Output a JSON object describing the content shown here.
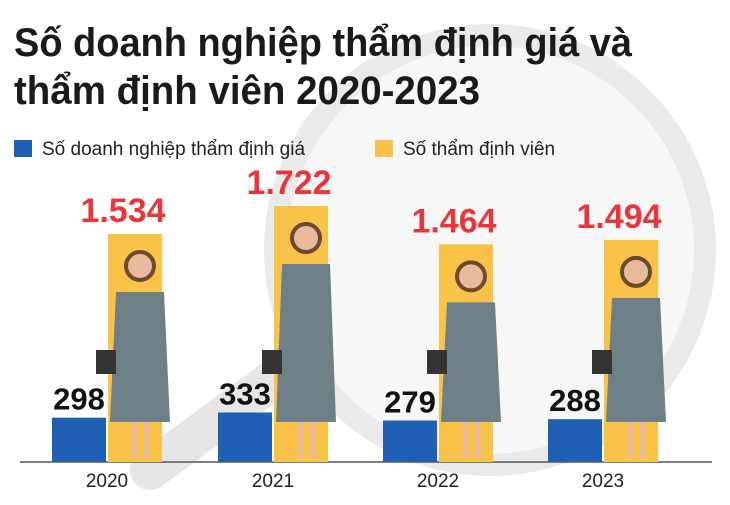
{
  "chart_data": {
    "type": "bar",
    "title": [
      "Số doanh nghiệp thẩm định giá và",
      "thẩm định viên 2020-2023"
    ],
    "categories": [
      "2020",
      "2021",
      "2022",
      "2023"
    ],
    "series": [
      {
        "name": "Số doanh nghiệp thẩm định giá",
        "color": "#1f5fb4",
        "label_color": "#111111",
        "values": [
          298,
          333,
          279,
          288
        ],
        "value_labels": [
          "298",
          "333",
          "279",
          "288"
        ]
      },
      {
        "name": "Số thẩm định viên",
        "color": "#f9c34a",
        "label_color": "#e8373c",
        "values": [
          1534,
          1722,
          1464,
          1494
        ],
        "value_labels": [
          "1.534",
          "1.722",
          "1.464",
          "1.494"
        ]
      }
    ]
  }
}
